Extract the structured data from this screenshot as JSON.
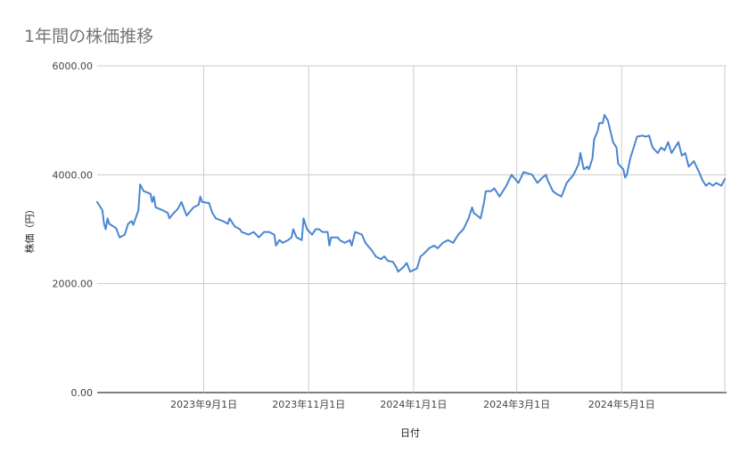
{
  "chart_data": {
    "type": "line",
    "title": "1年間の株価推移",
    "xlabel": "日付",
    "ylabel": "株価（円）",
    "ylim": [
      0,
      6000
    ],
    "yticks": [
      "0.00",
      "2000.00",
      "4000.00",
      "6000.00"
    ],
    "xlim": [
      "2023-07-01",
      "2024-06-30"
    ],
    "xticks": [
      {
        "date": "2023-09-01",
        "label": "2023年9月1日"
      },
      {
        "date": "2023-11-01",
        "label": "2023年11月1日"
      },
      {
        "date": "2024-01-01",
        "label": "2024年1月1日"
      },
      {
        "date": "2024-03-01",
        "label": "2024年3月1日"
      },
      {
        "date": "2024-05-01",
        "label": "2024年5月1日"
      }
    ],
    "grid": true,
    "legend": "none",
    "series": [
      {
        "color": "#4a86d0",
        "points": [
          [
            "2023-07-01",
            3500
          ],
          [
            "2023-07-04",
            3350
          ],
          [
            "2023-07-05",
            3100
          ],
          [
            "2023-07-06",
            3000
          ],
          [
            "2023-07-07",
            3200
          ],
          [
            "2023-07-08",
            3100
          ],
          [
            "2023-07-12",
            3020
          ],
          [
            "2023-07-14",
            2850
          ],
          [
            "2023-07-17",
            2900
          ],
          [
            "2023-07-19",
            3100
          ],
          [
            "2023-07-21",
            3150
          ],
          [
            "2023-07-22",
            3080
          ],
          [
            "2023-07-25",
            3350
          ],
          [
            "2023-07-26",
            3820
          ],
          [
            "2023-07-28",
            3700
          ],
          [
            "2023-08-01",
            3650
          ],
          [
            "2023-08-02",
            3500
          ],
          [
            "2023-08-03",
            3600
          ],
          [
            "2023-08-04",
            3400
          ],
          [
            "2023-08-08",
            3350
          ],
          [
            "2023-08-11",
            3300
          ],
          [
            "2023-08-12",
            3200
          ],
          [
            "2023-08-14",
            3280
          ],
          [
            "2023-08-17",
            3380
          ],
          [
            "2023-08-19",
            3500
          ],
          [
            "2023-08-22",
            3250
          ],
          [
            "2023-08-26",
            3400
          ],
          [
            "2023-08-29",
            3450
          ],
          [
            "2023-08-30",
            3600
          ],
          [
            "2023-08-31",
            3500
          ],
          [
            "2023-09-04",
            3480
          ],
          [
            "2023-09-06",
            3300
          ],
          [
            "2023-09-08",
            3200
          ],
          [
            "2023-09-12",
            3150
          ],
          [
            "2023-09-15",
            3100
          ],
          [
            "2023-09-16",
            3200
          ],
          [
            "2023-09-19",
            3050
          ],
          [
            "2023-09-22",
            3000
          ],
          [
            "2023-09-23",
            2950
          ],
          [
            "2023-09-27",
            2900
          ],
          [
            "2023-09-30",
            2950
          ],
          [
            "2023-10-03",
            2850
          ],
          [
            "2023-10-06",
            2950
          ],
          [
            "2023-10-09",
            2950
          ],
          [
            "2023-10-12",
            2900
          ],
          [
            "2023-10-13",
            2700
          ],
          [
            "2023-10-15",
            2800
          ],
          [
            "2023-10-17",
            2750
          ],
          [
            "2023-10-20",
            2800
          ],
          [
            "2023-10-22",
            2850
          ],
          [
            "2023-10-23",
            3000
          ],
          [
            "2023-10-25",
            2850
          ],
          [
            "2023-10-28",
            2800
          ],
          [
            "2023-10-29",
            3200
          ],
          [
            "2023-10-31",
            3000
          ],
          [
            "2023-11-03",
            2900
          ],
          [
            "2023-11-05",
            3000
          ],
          [
            "2023-11-07",
            3000
          ],
          [
            "2023-11-09",
            2950
          ],
          [
            "2023-11-12",
            2950
          ],
          [
            "2023-11-13",
            2700
          ],
          [
            "2023-11-14",
            2850
          ],
          [
            "2023-11-18",
            2850
          ],
          [
            "2023-11-19",
            2800
          ],
          [
            "2023-11-22",
            2750
          ],
          [
            "2023-11-25",
            2800
          ],
          [
            "2023-11-26",
            2700
          ],
          [
            "2023-11-28",
            2950
          ],
          [
            "2023-12-02",
            2900
          ],
          [
            "2023-12-04",
            2750
          ],
          [
            "2023-12-08",
            2600
          ],
          [
            "2023-12-10",
            2500
          ],
          [
            "2023-12-13",
            2450
          ],
          [
            "2023-12-15",
            2500
          ],
          [
            "2023-12-17",
            2420
          ],
          [
            "2023-12-20",
            2400
          ],
          [
            "2023-12-22",
            2300
          ],
          [
            "2023-12-23",
            2220
          ],
          [
            "2023-12-26",
            2300
          ],
          [
            "2023-12-28",
            2380
          ],
          [
            "2023-12-30",
            2220
          ],
          [
            "2024-01-03",
            2280
          ],
          [
            "2024-01-05",
            2500
          ],
          [
            "2024-01-07",
            2550
          ],
          [
            "2024-01-10",
            2650
          ],
          [
            "2024-01-13",
            2700
          ],
          [
            "2024-01-15",
            2650
          ],
          [
            "2024-01-18",
            2750
          ],
          [
            "2024-01-21",
            2800
          ],
          [
            "2024-01-24",
            2750
          ],
          [
            "2024-01-27",
            2900
          ],
          [
            "2024-01-30",
            3000
          ],
          [
            "2024-02-02",
            3200
          ],
          [
            "2024-02-04",
            3400
          ],
          [
            "2024-02-05",
            3300
          ],
          [
            "2024-02-09",
            3200
          ],
          [
            "2024-02-11",
            3500
          ],
          [
            "2024-02-12",
            3700
          ],
          [
            "2024-02-15",
            3700
          ],
          [
            "2024-02-17",
            3750
          ],
          [
            "2024-02-20",
            3600
          ],
          [
            "2024-02-24",
            3800
          ],
          [
            "2024-02-27",
            4000
          ],
          [
            "2024-03-02",
            3850
          ],
          [
            "2024-03-05",
            4050
          ],
          [
            "2024-03-10",
            4000
          ],
          [
            "2024-03-13",
            3850
          ],
          [
            "2024-03-16",
            3950
          ],
          [
            "2024-03-18",
            4000
          ],
          [
            "2024-03-19",
            3900
          ],
          [
            "2024-03-22",
            3700
          ],
          [
            "2024-03-24",
            3650
          ],
          [
            "2024-03-27",
            3600
          ],
          [
            "2024-03-30",
            3850
          ],
          [
            "2024-04-03",
            4000
          ],
          [
            "2024-04-06",
            4200
          ],
          [
            "2024-04-07",
            4400
          ],
          [
            "2024-04-09",
            4100
          ],
          [
            "2024-04-11",
            4150
          ],
          [
            "2024-04-12",
            4100
          ],
          [
            "2024-04-14",
            4300
          ],
          [
            "2024-04-15",
            4650
          ],
          [
            "2024-04-17",
            4800
          ],
          [
            "2024-04-18",
            4950
          ],
          [
            "2024-04-20",
            4950
          ],
          [
            "2024-04-21",
            5100
          ],
          [
            "2024-04-23",
            5000
          ],
          [
            "2024-04-26",
            4600
          ],
          [
            "2024-04-28",
            4500
          ],
          [
            "2024-04-29",
            4200
          ],
          [
            "2024-05-02",
            4100
          ],
          [
            "2024-05-03",
            3950
          ],
          [
            "2024-05-04",
            4000
          ],
          [
            "2024-05-06",
            4300
          ],
          [
            "2024-05-10",
            4700
          ],
          [
            "2024-05-13",
            4720
          ],
          [
            "2024-05-15",
            4700
          ],
          [
            "2024-05-17",
            4720
          ],
          [
            "2024-05-19",
            4500
          ],
          [
            "2024-05-22",
            4400
          ],
          [
            "2024-05-24",
            4500
          ],
          [
            "2024-05-26",
            4450
          ],
          [
            "2024-05-28",
            4600
          ],
          [
            "2024-05-30",
            4400
          ],
          [
            "2024-06-01",
            4500
          ],
          [
            "2024-06-03",
            4600
          ],
          [
            "2024-06-05",
            4350
          ],
          [
            "2024-06-07",
            4400
          ],
          [
            "2024-06-09",
            4150
          ],
          [
            "2024-06-12",
            4250
          ],
          [
            "2024-06-15",
            4050
          ],
          [
            "2024-06-17",
            3900
          ],
          [
            "2024-06-19",
            3800
          ],
          [
            "2024-06-21",
            3850
          ],
          [
            "2024-06-23",
            3800
          ],
          [
            "2024-06-25",
            3850
          ],
          [
            "2024-06-28",
            3800
          ],
          [
            "2024-06-30",
            3920
          ]
        ]
      }
    ]
  }
}
